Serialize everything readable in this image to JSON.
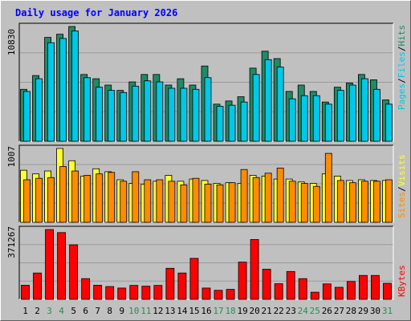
{
  "title": "Daily usage for January 2026",
  "colors": {
    "background": "#c0c0c0",
    "title": "#0000ff",
    "pages": "#00c8e8",
    "files": "#1f8a66",
    "hits": "#1f8a66",
    "visits": "#ffff33",
    "sites": "#ff8c00",
    "kbytes": "#ff0000",
    "weekend_label": "#2e8b57",
    "weekday_label": "#000000"
  },
  "chart_data": [
    {
      "type": "bar",
      "name": "hits-files-pages",
      "ymax_label": "10830",
      "ylim": [
        0,
        10830
      ],
      "legend": [
        "Pages",
        "/",
        "Files",
        "/",
        "Hits"
      ],
      "categories": [
        "1",
        "2",
        "3",
        "4",
        "5",
        "6",
        "7",
        "8",
        "9",
        "10",
        "11",
        "12",
        "13",
        "14",
        "15",
        "16",
        "17",
        "18",
        "19",
        "20",
        "21",
        "22",
        "23",
        "24",
        "25",
        "26",
        "27",
        "28",
        "29",
        "30",
        "31"
      ],
      "series": [
        {
          "name": "Hits",
          "values": [
            4900,
            6200,
            9800,
            10100,
            10830,
            6300,
            5900,
            5300,
            4800,
            5600,
            6300,
            6300,
            5300,
            5900,
            5300,
            7100,
            3500,
            3800,
            4200,
            6900,
            8500,
            7800,
            4700,
            5300,
            4700,
            3700,
            5100,
            5500,
            6300,
            5800,
            3900
          ]
        },
        {
          "name": "Files",
          "values": [
            4900,
            6200,
            9800,
            10100,
            10830,
            6300,
            5900,
            5300,
            4800,
            5600,
            6300,
            6300,
            5300,
            5900,
            5300,
            7100,
            3500,
            3800,
            4200,
            6900,
            8500,
            7800,
            4700,
            5300,
            4700,
            3700,
            5100,
            5500,
            6300,
            5800,
            3900
          ]
        },
        {
          "name": "Pages",
          "values": [
            4700,
            5900,
            9300,
            9700,
            10400,
            6000,
            5100,
            4800,
            4600,
            5200,
            5700,
            5600,
            5000,
            5000,
            4900,
            6000,
            3300,
            3400,
            3700,
            6300,
            7700,
            7000,
            4000,
            4300,
            4300,
            3500,
            4800,
            5300,
            5900,
            4900,
            3500
          ]
        }
      ]
    },
    {
      "type": "bar",
      "name": "visits-sites",
      "ymax_label": "1007",
      "ylim": [
        0,
        1007
      ],
      "legend": [
        "Sites",
        "/",
        "Visits"
      ],
      "categories": [
        "1",
        "2",
        "3",
        "4",
        "5",
        "6",
        "7",
        "8",
        "9",
        "10",
        "11",
        "12",
        "13",
        "14",
        "15",
        "16",
        "17",
        "18",
        "19",
        "20",
        "21",
        "22",
        "23",
        "24",
        "25",
        "26",
        "27",
        "28",
        "29",
        "30",
        "31"
      ],
      "series": [
        {
          "name": "Visits",
          "values": [
            710,
            660,
            700,
            1007,
            840,
            630,
            730,
            690,
            580,
            530,
            520,
            560,
            640,
            560,
            590,
            570,
            530,
            540,
            530,
            640,
            630,
            590,
            590,
            550,
            530,
            660,
            630,
            570,
            580,
            570,
            570
          ]
        },
        {
          "name": "Sites",
          "values": [
            580,
            600,
            610,
            760,
            700,
            640,
            660,
            680,
            560,
            690,
            580,
            580,
            560,
            510,
            600,
            520,
            510,
            540,
            720,
            610,
            670,
            740,
            560,
            530,
            490,
            940,
            570,
            540,
            560,
            560,
            580
          ]
        }
      ]
    },
    {
      "type": "bar",
      "name": "kbytes",
      "ymax_label": "371267",
      "ylim": [
        0,
        371267
      ],
      "legend": [
        "KBytes"
      ],
      "categories": [
        "1",
        "2",
        "3",
        "4",
        "5",
        "6",
        "7",
        "8",
        "9",
        "10",
        "11",
        "12",
        "13",
        "14",
        "15",
        "16",
        "17",
        "18",
        "19",
        "20",
        "21",
        "22",
        "23",
        "24",
        "25",
        "26",
        "27",
        "28",
        "29",
        "30",
        "31"
      ],
      "series": [
        {
          "name": "KBytes",
          "values": [
            75000,
            140000,
            371267,
            355000,
            290000,
            110000,
            75000,
            68000,
            60000,
            74000,
            70000,
            74000,
            165000,
            140000,
            218000,
            60000,
            48000,
            53000,
            198000,
            318000,
            160000,
            83000,
            148000,
            110000,
            38000,
            82000,
            64000,
            95000,
            127000,
            127000,
            85000
          ]
        }
      ]
    }
  ],
  "x_labels": [
    "1",
    "2",
    "3",
    "4",
    "5",
    "6",
    "7",
    "8",
    "9",
    "10",
    "11",
    "12",
    "13",
    "14",
    "15",
    "16",
    "17",
    "18",
    "19",
    "20",
    "21",
    "22",
    "23",
    "24",
    "25",
    "26",
    "27",
    "28",
    "29",
    "30",
    "31"
  ],
  "weekend_days": [
    "3",
    "4",
    "10",
    "11",
    "17",
    "18",
    "24",
    "25",
    "31"
  ]
}
